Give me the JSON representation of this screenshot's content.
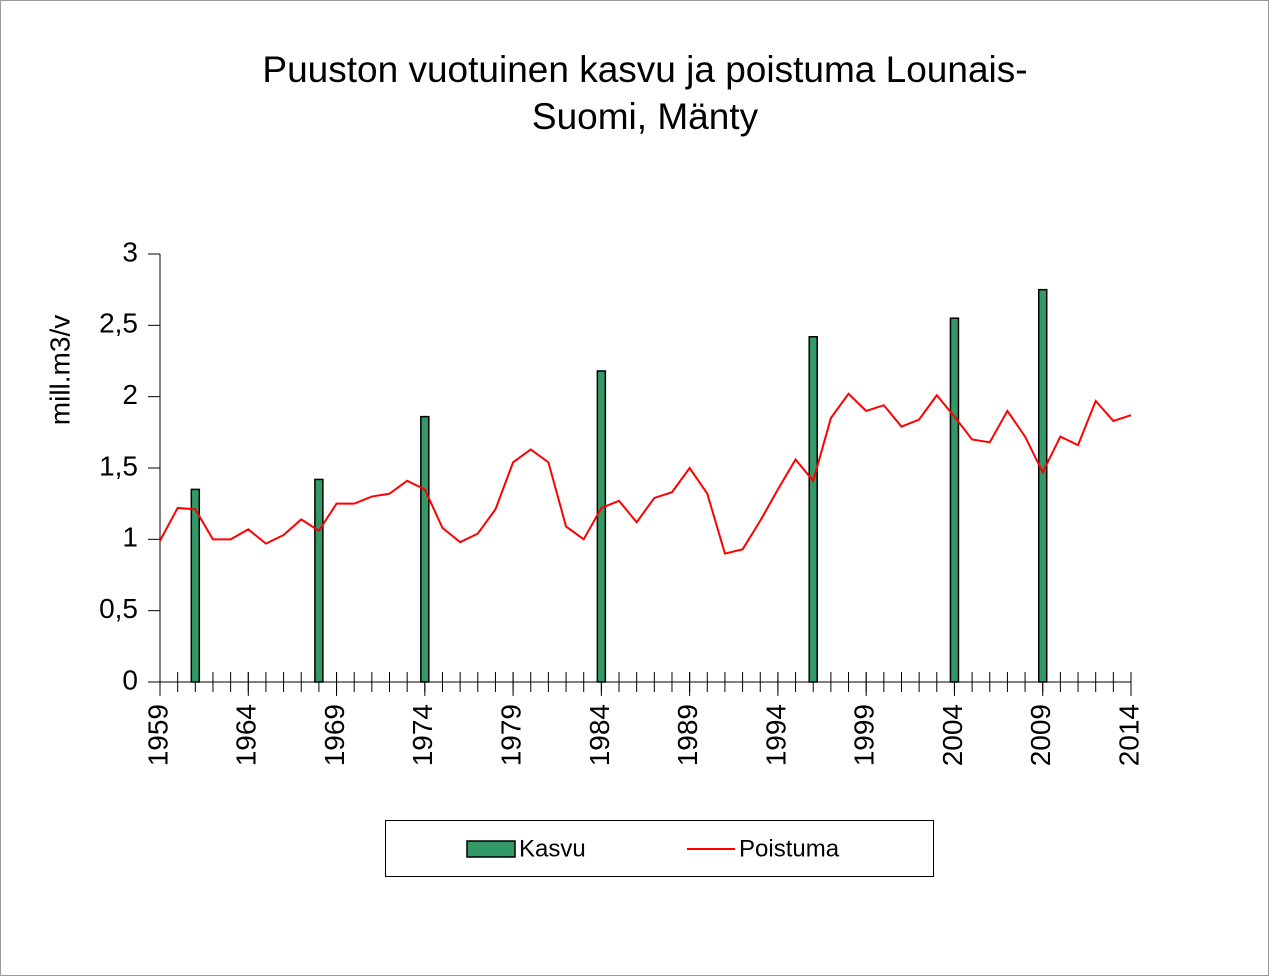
{
  "chart_data": {
    "type": "combo",
    "title": [
      "Puuston vuotuinen kasvu ja poistuma Lounais-",
      "Suomi, Mänty"
    ],
    "ylabel": "mill.m3/v",
    "xlim": [
      1959,
      2014
    ],
    "xticks": [
      1959,
      1964,
      1969,
      1974,
      1979,
      1984,
      1989,
      1994,
      1999,
      2004,
      2009,
      2014
    ],
    "xminorticks": [
      1959,
      1960,
      1961,
      1962,
      1963,
      1964,
      1965,
      1966,
      1967,
      1968,
      1969,
      1970,
      1971,
      1972,
      1973,
      1974,
      1975,
      1976,
      1977,
      1978,
      1979,
      1980,
      1981,
      1982,
      1983,
      1984,
      1985,
      1986,
      1987,
      1988,
      1989,
      1990,
      1991,
      1992,
      1993,
      1994,
      1995,
      1996,
      1997,
      1998,
      1999,
      2000,
      2001,
      2002,
      2003,
      2004,
      2005,
      2006,
      2007,
      2008,
      2009,
      2010,
      2011,
      2012,
      2013,
      2014
    ],
    "ylim": [
      0,
      3
    ],
    "yticks": [
      0,
      {
        "value": 0.5,
        "label": "0,5"
      },
      1,
      {
        "value": 1.5,
        "label": "1,5"
      },
      2,
      {
        "value": 2.5,
        "label": "2,5"
      },
      3
    ],
    "legend": "bottom",
    "series": [
      {
        "name": "Kasvu",
        "type": "bar",
        "color": "#339966",
        "x": [
          1961,
          1968,
          1974,
          1984,
          1996,
          2004,
          2009
        ],
        "values": [
          1.35,
          1.42,
          1.86,
          2.18,
          2.42,
          2.55,
          2.75
        ]
      },
      {
        "name": "Poistuma",
        "type": "line",
        "color": "#ff0000",
        "x": [
          1959,
          1960,
          1961,
          1962,
          1963,
          1964,
          1965,
          1966,
          1967,
          1968,
          1969,
          1970,
          1971,
          1972,
          1973,
          1974,
          1975,
          1976,
          1977,
          1978,
          1979,
          1980,
          1981,
          1982,
          1983,
          1984,
          1985,
          1986,
          1987,
          1988,
          1989,
          1990,
          1991,
          1992,
          1993,
          1994,
          1995,
          1996,
          1997,
          1998,
          1999,
          2000,
          2001,
          2002,
          2003,
          2004,
          2005,
          2006,
          2007,
          2008,
          2009,
          2010,
          2011,
          2012,
          2013,
          2014
        ],
        "values": [
          0.99,
          1.22,
          1.21,
          1.0,
          1.0,
          1.07,
          0.97,
          1.03,
          1.14,
          1.06,
          1.25,
          1.25,
          1.3,
          1.32,
          1.41,
          1.35,
          1.08,
          0.98,
          1.04,
          1.21,
          1.54,
          1.63,
          1.54,
          1.09,
          1.0,
          1.22,
          1.27,
          1.12,
          1.29,
          1.33,
          1.5,
          1.32,
          0.9,
          0.93,
          1.13,
          1.35,
          1.56,
          1.41,
          1.85,
          2.02,
          1.9,
          1.94,
          1.79,
          1.84,
          2.01,
          1.86,
          1.7,
          1.68,
          1.9,
          1.72,
          1.47,
          1.72,
          1.66,
          1.97,
          1.83,
          1.87
        ]
      }
    ]
  }
}
